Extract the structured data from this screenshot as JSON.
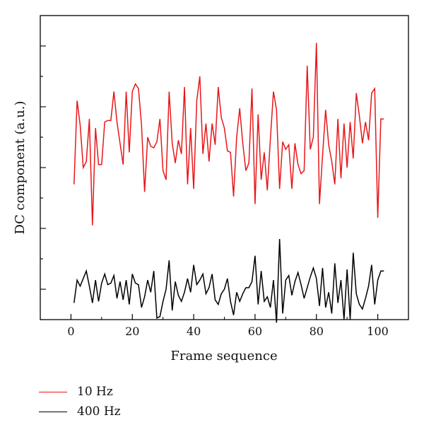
{
  "chart_data": {
    "type": "line",
    "xlabel": "Frame sequence",
    "ylabel": "DC component (a.u.)",
    "xlim": [
      -10,
      110
    ],
    "ylim": [
      0,
      10
    ],
    "x_ticks": [
      0,
      20,
      40,
      60,
      80,
      100
    ],
    "y_ticks": [
      0,
      1,
      2,
      3,
      4,
      5,
      6,
      7,
      8,
      9
    ],
    "y_tick_labels_shown": false,
    "grid": false,
    "legend_position": "bottom-left",
    "series": [
      {
        "name": "10 Hz",
        "color": "#e8171a",
        "x": [
          1,
          2,
          3,
          4,
          5,
          6,
          7,
          8,
          9,
          10,
          11,
          12,
          13,
          14,
          15,
          16,
          17,
          18,
          19,
          20,
          21,
          22,
          23,
          24,
          25,
          26,
          27,
          28,
          29,
          30,
          31,
          32,
          33,
          34,
          35,
          36,
          37,
          38,
          39,
          40,
          41,
          42,
          43,
          44,
          45,
          46,
          47,
          48,
          49,
          50,
          51,
          52,
          53,
          54,
          55,
          56,
          57,
          58,
          59,
          60,
          61,
          62,
          63,
          64,
          65,
          66,
          67,
          68,
          69,
          70,
          71,
          72,
          73,
          74,
          75,
          76,
          77,
          78,
          79,
          80,
          81,
          82,
          83,
          84,
          85,
          86,
          87,
          88,
          89,
          90,
          91,
          92,
          93,
          94,
          95,
          96,
          97,
          98,
          99,
          100,
          101,
          102
        ],
        "values": [
          4.45,
          7.2,
          6.4,
          5.0,
          5.2,
          6.6,
          3.1,
          6.3,
          5.1,
          5.1,
          6.5,
          6.55,
          6.55,
          7.5,
          6.5,
          5.8,
          5.1,
          7.5,
          5.5,
          7.5,
          7.75,
          7.6,
          6.4,
          4.2,
          6.0,
          5.7,
          5.65,
          5.85,
          6.6,
          4.9,
          4.6,
          7.5,
          5.8,
          5.15,
          5.9,
          5.45,
          7.65,
          4.45,
          6.3,
          4.3,
          7.2,
          8.0,
          5.45,
          6.45,
          5.2,
          6.45,
          5.75,
          7.65,
          6.65,
          6.3,
          5.55,
          5.5,
          4.05,
          6.0,
          6.95,
          5.8,
          4.9,
          5.15,
          7.6,
          3.8,
          6.75,
          4.6,
          5.5,
          4.25,
          5.95,
          7.5,
          6.9,
          4.3,
          5.85,
          5.6,
          5.75,
          4.3,
          5.8,
          5.1,
          4.8,
          4.9,
          8.35,
          5.6,
          6.0,
          9.1,
          3.8,
          5.4,
          6.9,
          5.75,
          5.2,
          4.45,
          6.6,
          4.65,
          6.45,
          5.0,
          6.5,
          5.3,
          7.45,
          6.7,
          5.8,
          6.5,
          5.9,
          7.45,
          7.6,
          3.35,
          6.6,
          6.6
        ]
      },
      {
        "name": "400 Hz",
        "color": "#000000",
        "x": [
          1,
          2,
          3,
          4,
          5,
          6,
          7,
          8,
          9,
          10,
          11,
          12,
          13,
          14,
          15,
          16,
          17,
          18,
          19,
          20,
          21,
          22,
          23,
          24,
          25,
          26,
          27,
          28,
          29,
          30,
          31,
          32,
          33,
          34,
          35,
          36,
          37,
          38,
          39,
          40,
          41,
          42,
          43,
          44,
          45,
          46,
          47,
          48,
          49,
          50,
          51,
          52,
          53,
          54,
          55,
          56,
          57,
          58,
          59,
          60,
          61,
          62,
          63,
          64,
          65,
          66,
          67,
          68,
          69,
          70,
          71,
          72,
          73,
          74,
          75,
          76,
          77,
          78,
          79,
          80,
          81,
          82,
          83,
          84,
          85,
          86,
          87,
          88,
          89,
          90,
          91,
          92,
          93,
          94,
          95,
          96,
          97,
          98,
          99,
          100,
          101,
          102
        ],
        "values": [
          0.55,
          1.3,
          1.1,
          1.35,
          1.6,
          1.1,
          0.55,
          1.3,
          0.6,
          1.2,
          1.5,
          1.15,
          1.2,
          1.45,
          0.7,
          1.25,
          0.65,
          1.3,
          0.5,
          1.5,
          1.2,
          1.15,
          0.4,
          0.75,
          1.3,
          0.9,
          1.6,
          0.05,
          0.1,
          0.6,
          1.0,
          1.95,
          0.3,
          1.25,
          0.8,
          0.6,
          0.9,
          1.35,
          0.9,
          1.8,
          1.15,
          1.3,
          1.5,
          0.85,
          1.05,
          1.5,
          0.65,
          0.5,
          0.85,
          1.0,
          1.35,
          0.6,
          0.15,
          0.9,
          0.6,
          0.85,
          1.05,
          1.05,
          1.25,
          2.1,
          0.5,
          1.6,
          0.6,
          0.75,
          0.4,
          1.3,
          -0.1,
          2.65,
          0.2,
          1.3,
          1.45,
          0.8,
          1.25,
          1.55,
          1.15,
          0.7,
          1.05,
          1.4,
          1.7,
          1.35,
          0.45,
          1.7,
          0.4,
          0.9,
          0.2,
          1.85,
          0.55,
          1.3,
          0.0,
          1.65,
          0.0,
          2.2,
          0.85,
          0.5,
          0.35,
          0.7,
          1.1,
          1.8,
          0.5,
          1.3,
          1.6,
          1.6
        ]
      }
    ]
  }
}
